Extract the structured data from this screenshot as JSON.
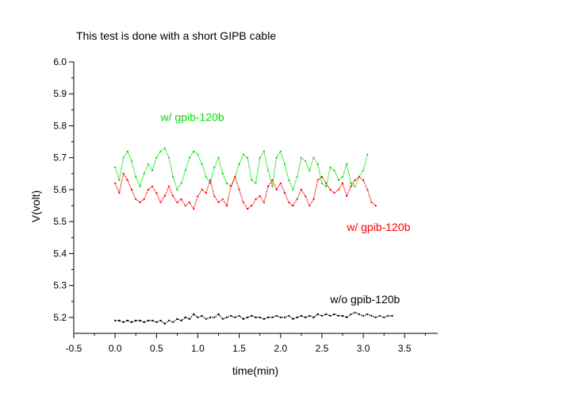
{
  "chart_data": {
    "type": "line",
    "title": "This test is done with a short GIPB cable",
    "xlabel": "time(min)",
    "ylabel": "V(volt)",
    "xlim": [
      -0.5,
      3.9
    ],
    "ylim": [
      5.15,
      6.0
    ],
    "xticks": [
      "-0.5",
      "0.0",
      "0.5",
      "1.0",
      "1.5",
      "2.0",
      "2.5",
      "3.0",
      "3.5"
    ],
    "yticks": [
      "5.2",
      "5.3",
      "5.4",
      "5.5",
      "5.6",
      "5.7",
      "5.8",
      "5.9",
      "6.0"
    ],
    "series": [
      {
        "name": "w/  gpib-120b",
        "color": "#00dd00",
        "x": [
          0.0,
          0.05,
          0.1,
          0.15,
          0.2,
          0.25,
          0.3,
          0.35,
          0.4,
          0.45,
          0.5,
          0.55,
          0.6,
          0.65,
          0.7,
          0.75,
          0.8,
          0.85,
          0.9,
          0.95,
          1.0,
          1.05,
          1.1,
          1.15,
          1.2,
          1.25,
          1.3,
          1.35,
          1.4,
          1.45,
          1.5,
          1.55,
          1.6,
          1.65,
          1.7,
          1.75,
          1.8,
          1.85,
          1.9,
          1.95,
          2.0,
          2.05,
          2.1,
          2.15,
          2.2,
          2.25,
          2.3,
          2.35,
          2.4,
          2.45,
          2.5,
          2.55,
          2.6,
          2.65,
          2.7,
          2.75,
          2.8,
          2.85,
          2.9,
          2.95,
          3.0,
          3.05
        ],
        "y": [
          5.67,
          5.63,
          5.7,
          5.72,
          5.69,
          5.64,
          5.61,
          5.65,
          5.68,
          5.66,
          5.7,
          5.72,
          5.73,
          5.7,
          5.64,
          5.6,
          5.62,
          5.66,
          5.7,
          5.72,
          5.71,
          5.68,
          5.64,
          5.62,
          5.67,
          5.7,
          5.65,
          5.62,
          5.61,
          5.64,
          5.68,
          5.71,
          5.7,
          5.63,
          5.62,
          5.7,
          5.72,
          5.66,
          5.61,
          5.7,
          5.72,
          5.68,
          5.63,
          5.6,
          5.64,
          5.7,
          5.69,
          5.66,
          5.7,
          5.68,
          5.62,
          5.61,
          5.67,
          5.66,
          5.63,
          5.64,
          5.68,
          5.62,
          5.61,
          5.64,
          5.66,
          5.71
        ]
      },
      {
        "name": "w/ gpib-120b",
        "color": "#ff0000",
        "x": [
          0.0,
          0.05,
          0.1,
          0.15,
          0.2,
          0.25,
          0.3,
          0.35,
          0.4,
          0.45,
          0.5,
          0.55,
          0.6,
          0.65,
          0.7,
          0.75,
          0.8,
          0.85,
          0.9,
          0.95,
          1.0,
          1.05,
          1.1,
          1.15,
          1.2,
          1.25,
          1.3,
          1.35,
          1.4,
          1.45,
          1.5,
          1.55,
          1.6,
          1.65,
          1.7,
          1.75,
          1.8,
          1.85,
          1.9,
          1.95,
          2.0,
          2.05,
          2.1,
          2.15,
          2.2,
          2.25,
          2.3,
          2.35,
          2.4,
          2.45,
          2.5,
          2.55,
          2.6,
          2.65,
          2.7,
          2.75,
          2.8,
          2.85,
          2.9,
          2.95,
          3.0,
          3.05,
          3.1,
          3.15
        ],
        "y": [
          5.62,
          5.59,
          5.65,
          5.63,
          5.6,
          5.57,
          5.56,
          5.57,
          5.6,
          5.61,
          5.59,
          5.56,
          5.58,
          5.61,
          5.58,
          5.56,
          5.57,
          5.55,
          5.56,
          5.54,
          5.58,
          5.6,
          5.59,
          5.63,
          5.58,
          5.56,
          5.57,
          5.55,
          5.61,
          5.64,
          5.6,
          5.56,
          5.54,
          5.55,
          5.57,
          5.58,
          5.56,
          5.61,
          5.63,
          5.6,
          5.62,
          5.59,
          5.56,
          5.55,
          5.57,
          5.6,
          5.58,
          5.55,
          5.57,
          5.63,
          5.64,
          5.62,
          5.6,
          5.59,
          5.6,
          5.62,
          5.58,
          5.61,
          5.63,
          5.64,
          5.63,
          5.6,
          5.56,
          5.55
        ]
      },
      {
        "name": "w/o gpib-120b",
        "color": "#000000",
        "x": [
          0.0,
          0.05,
          0.1,
          0.15,
          0.2,
          0.25,
          0.3,
          0.35,
          0.4,
          0.45,
          0.5,
          0.55,
          0.6,
          0.65,
          0.7,
          0.75,
          0.8,
          0.85,
          0.9,
          0.95,
          1.0,
          1.05,
          1.1,
          1.15,
          1.2,
          1.25,
          1.3,
          1.35,
          1.4,
          1.45,
          1.5,
          1.55,
          1.6,
          1.65,
          1.7,
          1.75,
          1.8,
          1.85,
          1.9,
          1.95,
          2.0,
          2.05,
          2.1,
          2.15,
          2.2,
          2.25,
          2.3,
          2.35,
          2.4,
          2.45,
          2.5,
          2.55,
          2.6,
          2.65,
          2.7,
          2.75,
          2.8,
          2.85,
          2.9,
          2.95,
          3.0,
          3.05,
          3.1,
          3.15,
          3.2,
          3.25,
          3.3,
          3.35
        ],
        "y": [
          5.19,
          5.19,
          5.185,
          5.19,
          5.185,
          5.19,
          5.19,
          5.185,
          5.19,
          5.19,
          5.185,
          5.19,
          5.18,
          5.19,
          5.185,
          5.195,
          5.19,
          5.2,
          5.195,
          5.21,
          5.2,
          5.205,
          5.195,
          5.2,
          5.2,
          5.21,
          5.195,
          5.2,
          5.205,
          5.2,
          5.205,
          5.195,
          5.2,
          5.205,
          5.2,
          5.2,
          5.195,
          5.2,
          5.2,
          5.205,
          5.2,
          5.2,
          5.205,
          5.195,
          5.2,
          5.205,
          5.2,
          5.205,
          5.2,
          5.21,
          5.205,
          5.21,
          5.205,
          5.21,
          5.205,
          5.205,
          5.2,
          5.21,
          5.215,
          5.21,
          5.205,
          5.21,
          5.205,
          5.2,
          5.205,
          5.2,
          5.205,
          5.205
        ]
      }
    ],
    "annotations": [
      {
        "text": "w/  gpib-120b",
        "color": "#00dd00",
        "x": 0.55,
        "y": 5.815
      },
      {
        "text": "w/ gpib-120b",
        "color": "#ff0000",
        "x": 2.8,
        "y": 5.47
      },
      {
        "text": "w/o gpib-120b",
        "color": "#000000",
        "x": 2.6,
        "y": 5.245
      }
    ]
  }
}
